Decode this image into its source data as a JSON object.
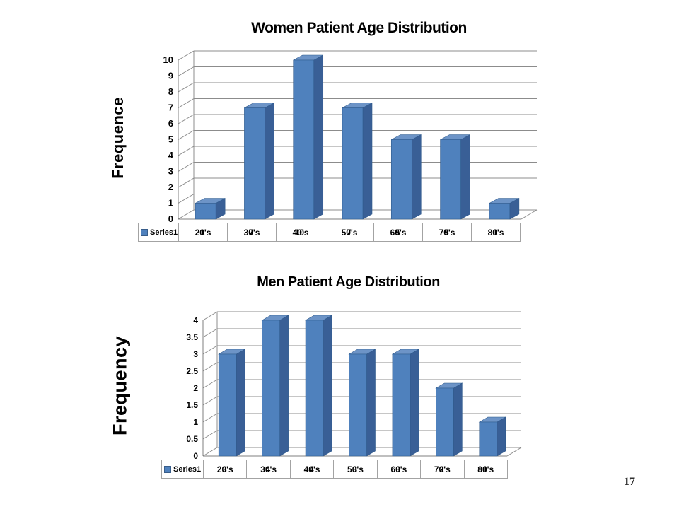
{
  "page": {
    "number": "17"
  },
  "colors": {
    "bar_front": "#4f81bd",
    "bar_top": "#6d94c7",
    "bar_side": "#395f96",
    "bar_edge": "#2f5a8c",
    "gridline": "#8c8c8c",
    "axis": "#7f7f7f",
    "table_border": "#a3a3a3",
    "title_text": "#000000",
    "page_number_text": "#2f2f2f"
  },
  "chart_data": [
    {
      "type": "bar",
      "style": "3d-column",
      "title": "Women Patient Age Distribution",
      "ylabel": "Frequence",
      "xlabel": "",
      "categories": [
        "20's",
        "30's",
        "40's",
        "50's",
        "60's",
        "70's",
        "80's"
      ],
      "series": [
        {
          "name": "Series1",
          "values": [
            1,
            7,
            10,
            7,
            5,
            5,
            1
          ]
        }
      ],
      "y_ticks": [
        0,
        1,
        2,
        3,
        4,
        5,
        6,
        7,
        8,
        9,
        10
      ],
      "ylim": [
        0,
        10
      ],
      "grid": true,
      "legend_position": "data-table-left"
    },
    {
      "type": "bar",
      "style": "3d-column",
      "title": "Men Patient Age Distribution",
      "ylabel": "Frequency",
      "xlabel": "",
      "categories": [
        "20's",
        "30's",
        "40's",
        "50's",
        "60's",
        "70's",
        "80's"
      ],
      "series": [
        {
          "name": "Series1",
          "values": [
            3,
            4,
            4,
            3,
            3,
            2,
            1
          ]
        }
      ],
      "y_ticks": [
        0,
        0.5,
        1,
        1.5,
        2,
        2.5,
        3,
        3.5,
        4
      ],
      "ylim": [
        0,
        4
      ],
      "grid": true,
      "legend_position": "data-table-left"
    }
  ]
}
